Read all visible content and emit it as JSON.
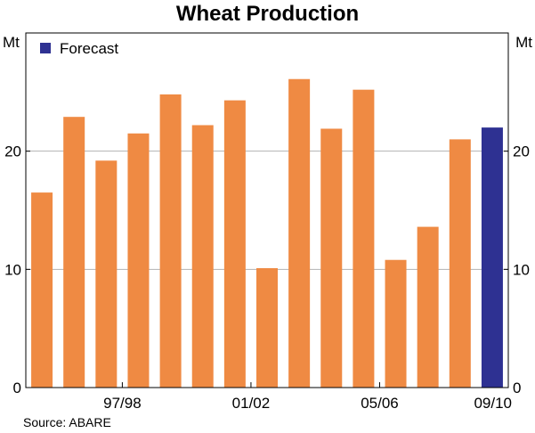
{
  "chart_data": {
    "type": "bar",
    "title": "Wheat Production",
    "y_unit_left": "Mt",
    "y_unit_right": "Mt",
    "ylim": [
      0,
      30
    ],
    "yticks": [
      0,
      10,
      20
    ],
    "x_tick_labels": [
      {
        "label": "97/98",
        "after_index": 2
      },
      {
        "label": "01/02",
        "after_index": 6
      },
      {
        "label": "05/06",
        "after_index": 10
      },
      {
        "label": "09/10",
        "after_index": 14
      }
    ],
    "categories": [
      "1",
      "2",
      "3",
      "4",
      "5",
      "6",
      "7",
      "8",
      "9",
      "10",
      "11",
      "12",
      "13",
      "14",
      "15"
    ],
    "values": [
      16.5,
      22.9,
      19.2,
      21.5,
      24.8,
      22.2,
      24.3,
      10.1,
      26.1,
      21.9,
      25.2,
      10.8,
      13.6,
      21.0,
      22.0
    ],
    "series": [
      {
        "name": "",
        "color": "#ef8a43",
        "indices": [
          0,
          1,
          2,
          3,
          4,
          5,
          6,
          7,
          8,
          9,
          10,
          11,
          12,
          13
        ]
      },
      {
        "name": "Forecast",
        "color": "#2e3192",
        "indices": [
          14
        ]
      }
    ],
    "legend": {
      "label": "Forecast",
      "color": "#2e3192",
      "position": "top-left"
    },
    "grid": true,
    "source": "Source: ABARE"
  }
}
